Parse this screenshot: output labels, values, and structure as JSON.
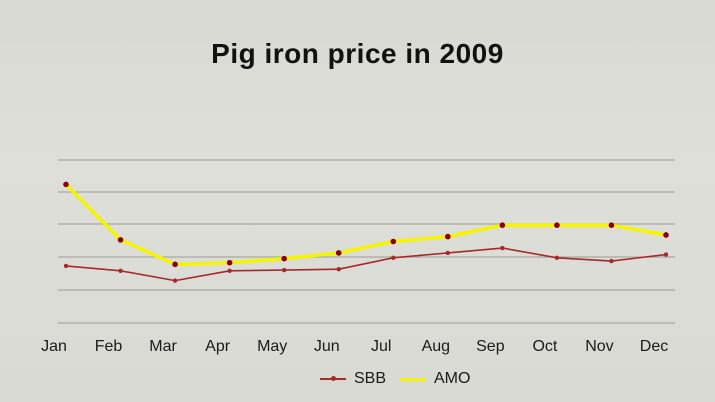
{
  "chart_data": {
    "type": "line",
    "title": "Pig iron price in 2009",
    "categories": [
      "Jan",
      "Feb",
      "Mar",
      "Apr",
      "May",
      "Jun",
      "Jul",
      "Aug",
      "Sep",
      "Oct",
      "Nov",
      "Dec"
    ],
    "series": [
      {
        "name": "SBB",
        "color": "#a52a2a",
        "values": [
          3.5,
          3.2,
          2.6,
          3.2,
          3.25,
          3.3,
          4.0,
          4.3,
          4.6,
          4.0,
          3.8,
          4.2
        ]
      },
      {
        "name": "AMO",
        "color": "#f5f500",
        "values": [
          8.5,
          5.1,
          3.6,
          3.7,
          3.95,
          4.3,
          5.0,
          5.3,
          6.0,
          6.0,
          6.0,
          5.4
        ]
      }
    ],
    "ylim": [
      0,
      10
    ],
    "grid": true,
    "legend": "bottom"
  }
}
